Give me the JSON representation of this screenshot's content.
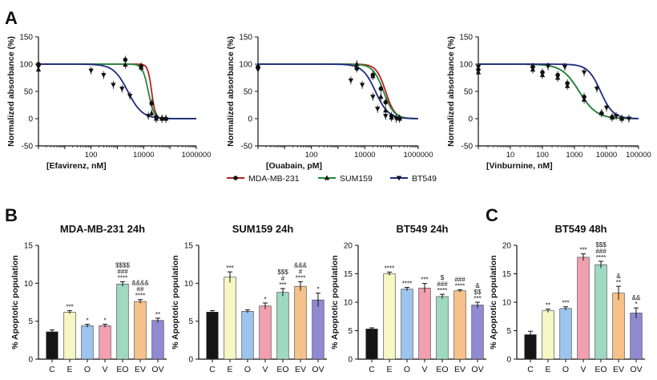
{
  "panel_labels": {
    "a": "A",
    "b": "B",
    "c": "C"
  },
  "legend": [
    {
      "name": "MDA-MB-231",
      "color": "#b22222",
      "marker": "circle"
    },
    {
      "name": "SUM159",
      "color": "#1e8a3c",
      "marker": "triangle-up"
    },
    {
      "name": "BT549",
      "color": "#1f2a80",
      "marker": "triangle-down"
    }
  ],
  "chart_data": [
    {
      "type": "line",
      "id": "efavirenz",
      "title": "",
      "xlabel": "[Efavirenz, nM]",
      "ylabel": "Normalized absorbance (%)",
      "xscale": "log",
      "xlim": [
        1,
        1000000
      ],
      "ylim": [
        -50,
        150
      ],
      "yticks": [
        -50,
        0,
        50,
        100,
        150
      ],
      "xticks": [
        {
          "value": 100,
          "label": "100"
        },
        {
          "value": 10000,
          "label": "10000"
        },
        {
          "value": 1000000,
          "label": "1000000"
        }
      ],
      "curves": [
        {
          "name": "MDA-MB-231",
          "top": 100,
          "bottom": 0,
          "ic50": 20000,
          "hill": 6
        },
        {
          "name": "SUM159",
          "top": 100,
          "bottom": 0,
          "ic50": 15000,
          "hill": 4
        },
        {
          "name": "BT549",
          "top": 100,
          "bottom": 0,
          "ic50": 2500,
          "hill": 1.6
        }
      ],
      "series": [
        {
          "name": "MDA-MB-231",
          "x": [
            1,
            2000,
            8000,
            20000,
            30000,
            50000,
            70000
          ],
          "y": [
            100,
            108,
            96,
            28,
            3,
            0,
            0
          ]
        },
        {
          "name": "SUM159",
          "x": [
            1,
            2000,
            8000,
            20000,
            30000,
            50000,
            70000
          ],
          "y": [
            90,
            99,
            94,
            10,
            0,
            0,
            0
          ]
        },
        {
          "name": "BT549",
          "x": [
            1,
            100,
            300,
            700,
            1500,
            3000,
            15000,
            30000
          ],
          "y": [
            95,
            88,
            80,
            62,
            55,
            42,
            5,
            0
          ]
        }
      ]
    },
    {
      "type": "line",
      "id": "ouabain",
      "title": "",
      "xlabel": "[Ouabain, pM]",
      "ylabel": "Normalized absorbance (%)",
      "xscale": "log",
      "xlim": [
        1,
        1000000
      ],
      "ylim": [
        -50,
        150
      ],
      "yticks": [
        -50,
        0,
        50,
        100,
        150
      ],
      "xticks": [
        {
          "value": 100,
          "label": "100"
        },
        {
          "value": 10000,
          "label": "10000"
        },
        {
          "value": 1000000,
          "label": "1000000"
        }
      ],
      "curves": [
        {
          "name": "MDA-MB-231",
          "top": 100,
          "bottom": 0,
          "ic50": 60000,
          "hill": 2.5
        },
        {
          "name": "SUM159",
          "top": 100,
          "bottom": 0,
          "ic50": 50000,
          "hill": 2.2
        },
        {
          "name": "BT549",
          "top": 100,
          "bottom": 0,
          "ic50": 25000,
          "hill": 1.8
        }
      ],
      "series": [
        {
          "name": "MDA-MB-231",
          "x": [
            1,
            5000,
            20000,
            40000,
            60000,
            100000,
            200000
          ],
          "y": [
            95,
            92,
            80,
            55,
            30,
            5,
            0
          ]
        },
        {
          "name": "SUM159",
          "x": [
            1,
            5000,
            20000,
            40000,
            60000,
            100000,
            200000
          ],
          "y": [
            96,
            100,
            78,
            40,
            15,
            2,
            0
          ]
        },
        {
          "name": "BT549",
          "x": [
            1,
            3000,
            8000,
            20000,
            30000,
            60000,
            150000
          ],
          "y": [
            90,
            70,
            62,
            40,
            18,
            5,
            0
          ]
        }
      ]
    },
    {
      "type": "line",
      "id": "vinburnine",
      "title": "",
      "xlabel": "[Vinburnine, nM]",
      "ylabel": "Normalized absorbance (%)",
      "xscale": "log",
      "xlim": [
        1,
        100000
      ],
      "ylim": [
        -50,
        150
      ],
      "yticks": [
        -50,
        0,
        50,
        100,
        150
      ],
      "xticks": [
        {
          "value": 10,
          "label": "10"
        },
        {
          "value": 100,
          "label": "100"
        },
        {
          "value": 1000,
          "label": "1000"
        },
        {
          "value": 10000,
          "label": "10000"
        },
        {
          "value": 100000,
          "label": "100000"
        }
      ],
      "curves": [
        {
          "name": "MDA-MB-231",
          "top": 100,
          "bottom": 0,
          "ic50": 1400,
          "hill": 1.6
        },
        {
          "name": "SUM159",
          "top": 100,
          "bottom": 0,
          "ic50": 1400,
          "hill": 1.6
        },
        {
          "name": "BT549",
          "top": 100,
          "bottom": 0,
          "ic50": 6500,
          "hill": 2.2
        }
      ],
      "series": [
        {
          "name": "MDA-MB-231",
          "x": [
            1,
            50,
            100,
            300,
            600,
            2000,
            7000,
            15000,
            30000
          ],
          "y": [
            90,
            95,
            85,
            80,
            65,
            40,
            10,
            3,
            0
          ]
        },
        {
          "name": "SUM159",
          "x": [
            1,
            50,
            100,
            300,
            600,
            2000,
            7000,
            15000,
            30000
          ],
          "y": [
            85,
            90,
            80,
            75,
            60,
            35,
            10,
            2,
            0
          ]
        },
        {
          "name": "BT549",
          "x": [
            1,
            50,
            150,
            500,
            2000,
            5000,
            10000,
            20000,
            50000
          ],
          "y": [
            95,
            92,
            96,
            95,
            85,
            55,
            20,
            5,
            0
          ]
        }
      ]
    },
    {
      "type": "bar",
      "id": "mda24",
      "title": "MDA-MB-231 24h",
      "ylabel": "% Apoptotic population",
      "ylim": [
        0,
        15
      ],
      "yticks": [
        0,
        5,
        10,
        15
      ],
      "categories": [
        "C",
        "E",
        "O",
        "V",
        "EO",
        "EV",
        "OV"
      ],
      "values": [
        3.6,
        6.2,
        4.4,
        4.4,
        9.9,
        7.6,
        5.1
      ],
      "errors": [
        0.25,
        0.2,
        0.2,
        0.2,
        0.3,
        0.25,
        0.3
      ],
      "colors": [
        "#151515",
        "#f7f7c4",
        "#9cc4ee",
        "#f29fb0",
        "#9fd9c2",
        "#f7c289",
        "#8f8ad2"
      ],
      "annotations": [
        [],
        [
          "***"
        ],
        [
          "*"
        ],
        [
          "*"
        ],
        [
          "$$$$",
          "###",
          "****"
        ],
        [
          "&&&&",
          "##",
          "****"
        ],
        [
          "**"
        ]
      ]
    },
    {
      "type": "bar",
      "id": "sum24",
      "title": "SUM159 24h",
      "ylabel": "% Apoptotic population",
      "ylim": [
        0,
        15
      ],
      "yticks": [
        0,
        5,
        10,
        15
      ],
      "categories": [
        "C",
        "E",
        "O",
        "V",
        "EO",
        "EV",
        "OV"
      ],
      "values": [
        6.2,
        10.8,
        6.3,
        7.0,
        8.8,
        9.6,
        7.8
      ],
      "errors": [
        0.2,
        0.7,
        0.2,
        0.4,
        0.5,
        0.6,
        0.9
      ],
      "colors": [
        "#151515",
        "#f7f7c4",
        "#9cc4ee",
        "#f29fb0",
        "#9fd9c2",
        "#f7c289",
        "#8f8ad2"
      ],
      "annotations": [
        [],
        [
          "***"
        ],
        [],
        [
          "*"
        ],
        [
          "$$$",
          "#",
          "***"
        ],
        [
          "&&&",
          "#",
          "****"
        ],
        [
          "*"
        ]
      ]
    },
    {
      "type": "bar",
      "id": "bt24",
      "title": "BT549 24h",
      "ylabel": "% Apoptotic population",
      "ylim": [
        0,
        20
      ],
      "yticks": [
        0,
        5,
        10,
        15,
        20
      ],
      "categories": [
        "C",
        "E",
        "O",
        "V",
        "EO",
        "EV",
        "OV"
      ],
      "values": [
        5.3,
        15.0,
        12.3,
        12.5,
        11.0,
        12.0,
        9.5
      ],
      "errors": [
        0.2,
        0.3,
        0.3,
        0.8,
        0.4,
        0.2,
        0.5
      ],
      "colors": [
        "#151515",
        "#f7f7c4",
        "#9cc4ee",
        "#f29fb0",
        "#9fd9c2",
        "#f7c289",
        "#8f8ad2"
      ],
      "annotations": [
        [],
        [
          "****"
        ],
        [
          "****"
        ],
        [
          "***"
        ],
        [
          "$",
          "###",
          "****"
        ],
        [
          "###",
          "****"
        ],
        [
          "&",
          "$$",
          "***"
        ]
      ]
    },
    {
      "type": "bar",
      "id": "bt48",
      "title": "BT549 48h",
      "ylabel": "% Apoptotic population",
      "ylim": [
        0,
        20
      ],
      "yticks": [
        0,
        5,
        10,
        15,
        20
      ],
      "categories": [
        "C",
        "E",
        "O",
        "V",
        "EO",
        "EV",
        "OV"
      ],
      "values": [
        4.3,
        8.5,
        8.9,
        17.9,
        16.6,
        11.6,
        8.1
      ],
      "errors": [
        0.6,
        0.3,
        0.3,
        0.6,
        0.6,
        1.2,
        0.9
      ],
      "colors": [
        "#151515",
        "#f7f7c4",
        "#9cc4ee",
        "#f29fb0",
        "#9fd9c2",
        "#f7c289",
        "#8f8ad2"
      ],
      "annotations": [
        [],
        [
          "**"
        ],
        [
          "***"
        ],
        [
          "***"
        ],
        [
          "$$$",
          "###",
          "****"
        ],
        [
          "&",
          "**"
        ],
        [
          "&&",
          "*"
        ]
      ]
    }
  ]
}
